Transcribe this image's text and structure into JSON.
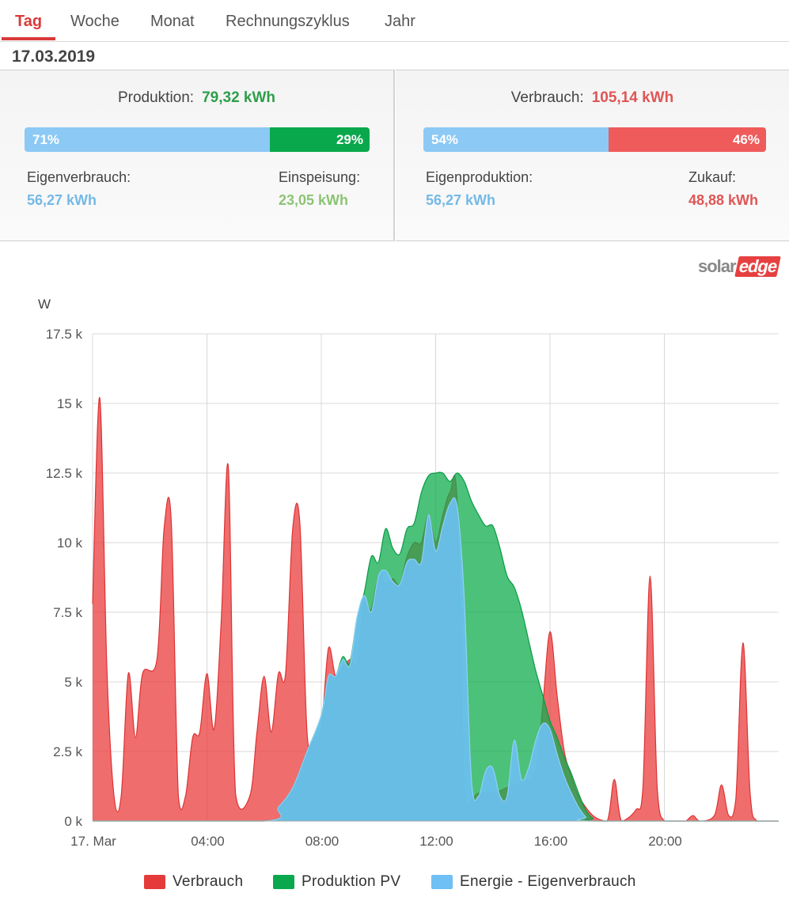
{
  "tabs": [
    {
      "label": "Tag",
      "active": true
    },
    {
      "label": "Woche",
      "active": false
    },
    {
      "label": "Monat",
      "active": false
    },
    {
      "label": "Rechnungszyklus",
      "active": false
    },
    {
      "label": "Jahr",
      "active": false
    }
  ],
  "date": "17.03.2019",
  "production": {
    "label": "Produktion:",
    "value": "79,32 kWh",
    "bar": {
      "left_pct_label": "71%",
      "right_pct_label": "29%",
      "left_fraction": 0.71
    },
    "self_label": "Eigenverbrauch:",
    "self_value": "56,27 kWh",
    "feed_label": "Einspeisung:",
    "feed_value": "23,05 kWh"
  },
  "consumption": {
    "label": "Verbrauch:",
    "value": "105,14 kWh",
    "bar": {
      "left_pct_label": "54%",
      "right_pct_label": "46%",
      "left_fraction": 0.54
    },
    "self_label": "Eigenproduktion:",
    "self_value": "56,27 kWh",
    "buy_label": "Zukauf:",
    "buy_value": "48,88 kWh"
  },
  "logo": {
    "part1": "solar",
    "part2": "edge"
  },
  "colors": {
    "red": "#d93a3a",
    "green_text": "#2e9e4a",
    "blue_text": "#74b9e6",
    "bar_blue": "#8cc9f5",
    "bar_green": "#0aa84c",
    "bar_red": "#ef5b5b",
    "area_red": "#ef6b6b",
    "area_green": "#3cc170",
    "area_blue": "#5ab4d8"
  },
  "chart_data": {
    "type": "area",
    "y_unit": "W",
    "ylim": [
      0,
      17500
    ],
    "yticks": [
      "0 k",
      "2.5 k",
      "5 k",
      "7.5 k",
      "10 k",
      "12.5 k",
      "15 k",
      "17.5 k"
    ],
    "xlim_hours": [
      0,
      24
    ],
    "xticks": [
      {
        "h": 0,
        "label": "17. Mar"
      },
      {
        "h": 4,
        "label": "04:00"
      },
      {
        "h": 8,
        "label": "08:00"
      },
      {
        "h": 12,
        "label": "12:00"
      },
      {
        "h": 16,
        "label": "16:00"
      },
      {
        "h": 20,
        "label": "20:00"
      }
    ],
    "series": [
      {
        "name": "Verbrauch",
        "color": "#ef6b6b",
        "points": [
          [
            0,
            7800
          ],
          [
            0.25,
            15200
          ],
          [
            0.5,
            5500
          ],
          [
            0.75,
            900
          ],
          [
            1,
            900
          ],
          [
            1.25,
            5300
          ],
          [
            1.5,
            3000
          ],
          [
            1.75,
            5300
          ],
          [
            2.25,
            5800
          ],
          [
            2.5,
            10500
          ],
          [
            2.75,
            10800
          ],
          [
            3.0,
            900
          ],
          [
            3.25,
            900
          ],
          [
            3.5,
            3000
          ],
          [
            3.75,
            3200
          ],
          [
            4.0,
            5300
          ],
          [
            4.25,
            3300
          ],
          [
            4.5,
            7200
          ],
          [
            4.75,
            12700
          ],
          [
            5.0,
            1000
          ],
          [
            5.5,
            900
          ],
          [
            5.75,
            3200
          ],
          [
            6.0,
            5200
          ],
          [
            6.25,
            3200
          ],
          [
            6.5,
            5300
          ],
          [
            6.75,
            5300
          ],
          [
            7.0,
            10500
          ],
          [
            7.25,
            10700
          ],
          [
            7.5,
            3200
          ],
          [
            7.75,
            3000
          ],
          [
            8.0,
            3300
          ],
          [
            8.25,
            6200
          ],
          [
            8.5,
            5200
          ],
          [
            8.75,
            5500
          ],
          [
            9.0,
            5800
          ],
          [
            9.25,
            5600
          ],
          [
            9.5,
            7800
          ],
          [
            9.75,
            7600
          ],
          [
            10,
            8800
          ],
          [
            10.25,
            8500
          ],
          [
            10.5,
            8700
          ],
          [
            10.75,
            8500
          ],
          [
            11,
            9500
          ],
          [
            11.25,
            10000
          ],
          [
            11.5,
            10000
          ],
          [
            11.75,
            11000
          ],
          [
            12.0,
            10000
          ],
          [
            12.25,
            11000
          ],
          [
            12.5,
            11800
          ],
          [
            12.75,
            11500
          ],
          [
            13.0,
            1000
          ],
          [
            13.25,
            800
          ],
          [
            13.5,
            1000
          ],
          [
            14,
            1000
          ],
          [
            14.5,
            1200
          ],
          [
            15,
            1400
          ],
          [
            15.5,
            1800
          ],
          [
            15.75,
            4200
          ],
          [
            16.0,
            6800
          ],
          [
            16.25,
            4500
          ],
          [
            16.5,
            2500
          ],
          [
            16.75,
            1600
          ],
          [
            17.0,
            900
          ],
          [
            17.5,
            200
          ],
          [
            18.0,
            0
          ],
          [
            18.25,
            1500
          ],
          [
            18.5,
            0
          ],
          [
            19.0,
            400
          ],
          [
            19.25,
            1200
          ],
          [
            19.5,
            8800
          ],
          [
            19.75,
            1200
          ],
          [
            20.0,
            0
          ],
          [
            20.5,
            0
          ],
          [
            20.75,
            0
          ],
          [
            21,
            200
          ],
          [
            21.25,
            0
          ],
          [
            21.75,
            200
          ],
          [
            22,
            1300
          ],
          [
            22.25,
            200
          ],
          [
            22.5,
            800
          ],
          [
            22.75,
            6400
          ],
          [
            23.0,
            1000
          ],
          [
            23.25,
            0
          ],
          [
            24,
            0
          ]
        ]
      },
      {
        "name": "Produktion PV",
        "color": "#3cc170",
        "points": [
          [
            0,
            0
          ],
          [
            6.0,
            0
          ],
          [
            6.5,
            500
          ],
          [
            7.0,
            1200
          ],
          [
            7.5,
            2500
          ],
          [
            8.0,
            3800
          ],
          [
            8.25,
            5200
          ],
          [
            8.5,
            5200
          ],
          [
            8.75,
            5900
          ],
          [
            9.0,
            5700
          ],
          [
            9.25,
            7300
          ],
          [
            9.5,
            8200
          ],
          [
            9.75,
            9500
          ],
          [
            10,
            9300
          ],
          [
            10.25,
            10500
          ],
          [
            10.5,
            9800
          ],
          [
            10.75,
            9600
          ],
          [
            11,
            10500
          ],
          [
            11.25,
            10700
          ],
          [
            11.5,
            11800
          ],
          [
            11.75,
            12400
          ],
          [
            12.0,
            12500
          ],
          [
            12.25,
            12500
          ],
          [
            12.5,
            12200
          ],
          [
            12.75,
            12500
          ],
          [
            13.0,
            12200
          ],
          [
            13.25,
            11500
          ],
          [
            13.5,
            11000
          ],
          [
            13.75,
            10600
          ],
          [
            14.0,
            10600
          ],
          [
            14.25,
            9800
          ],
          [
            14.5,
            8800
          ],
          [
            14.75,
            8400
          ],
          [
            15.0,
            7600
          ],
          [
            15.25,
            6500
          ],
          [
            15.5,
            5400
          ],
          [
            15.75,
            4500
          ],
          [
            16.0,
            3600
          ],
          [
            16.25,
            3000
          ],
          [
            16.5,
            2300
          ],
          [
            16.75,
            1700
          ],
          [
            17.0,
            1000
          ],
          [
            17.25,
            400
          ],
          [
            17.5,
            100
          ],
          [
            17.75,
            0
          ],
          [
            24,
            0
          ]
        ]
      },
      {
        "name": "Energie - Eigenverbrauch",
        "color": "#5ab4d8",
        "points": [
          [
            0,
            0
          ],
          [
            6.0,
            0
          ],
          [
            6.5,
            500
          ],
          [
            7.0,
            1200
          ],
          [
            7.5,
            2500
          ],
          [
            8.0,
            3800
          ],
          [
            8.25,
            5200
          ],
          [
            8.5,
            5200
          ],
          [
            8.75,
            5800
          ],
          [
            9.0,
            5600
          ],
          [
            9.25,
            7300
          ],
          [
            9.5,
            8100
          ],
          [
            9.75,
            7500
          ],
          [
            10,
            8800
          ],
          [
            10.25,
            9000
          ],
          [
            10.5,
            8600
          ],
          [
            10.75,
            8500
          ],
          [
            11,
            9300
          ],
          [
            11.25,
            9400
          ],
          [
            11.5,
            9300
          ],
          [
            11.75,
            11000
          ],
          [
            12.0,
            9700
          ],
          [
            12.25,
            10600
          ],
          [
            12.5,
            11400
          ],
          [
            12.75,
            11300
          ],
          [
            13.0,
            8000
          ],
          [
            13.25,
            1500
          ],
          [
            13.5,
            900
          ],
          [
            13.75,
            1800
          ],
          [
            14.0,
            1900
          ],
          [
            14.25,
            900
          ],
          [
            14.5,
            900
          ],
          [
            14.75,
            2900
          ],
          [
            15.0,
            1500
          ],
          [
            15.25,
            1900
          ],
          [
            15.5,
            2900
          ],
          [
            15.75,
            3500
          ],
          [
            16.0,
            3300
          ],
          [
            16.25,
            2400
          ],
          [
            16.5,
            1600
          ],
          [
            16.75,
            1000
          ],
          [
            17.0,
            500
          ],
          [
            17.25,
            150
          ],
          [
            17.5,
            0
          ],
          [
            24,
            0
          ]
        ]
      }
    ]
  }
}
